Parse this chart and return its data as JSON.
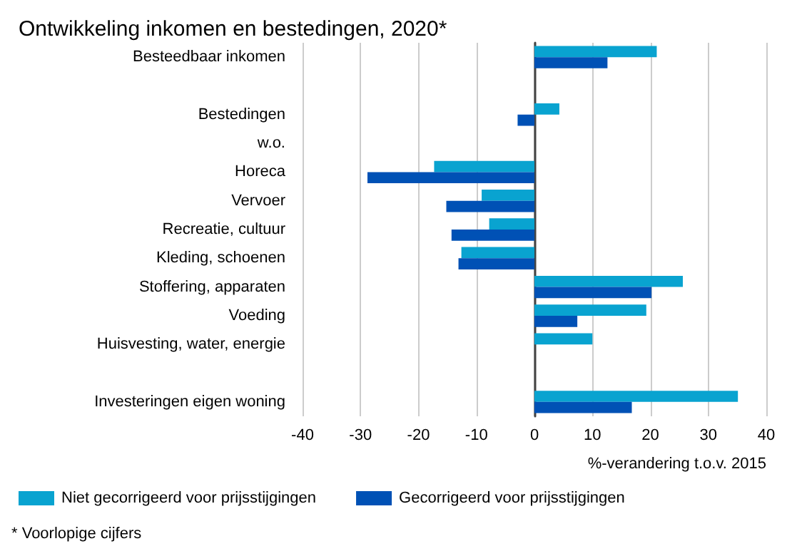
{
  "chart_data": {
    "type": "bar",
    "orientation": "horizontal",
    "title": "Ontwikkeling inkomen en bestedingen, 2020*",
    "xlabel": "%-verandering t.o.v. 2015",
    "categories": [
      "Besteedbaar inkomen",
      null,
      "Bestedingen",
      "w.o.",
      "Horeca",
      "Vervoer",
      "Recreatie, cultuur",
      "Kleding, schoenen",
      "Stoffering, apparaten",
      "Voeding",
      "Huisvesting, water, energie",
      null,
      "Investeringen eigen woning"
    ],
    "series": [
      {
        "name": "Niet gecorrigeerd voor prijsstijgingen",
        "color": "#09a3d0",
        "values": [
          21.1,
          null,
          4.3,
          null,
          -17.3,
          -9.1,
          -7.8,
          -12.6,
          25.6,
          19.3,
          10.0,
          null,
          35.1
        ]
      },
      {
        "name": "Gecorrigeerd voor prijsstijgingen",
        "color": "#0051b5",
        "values": [
          12.6,
          null,
          -2.9,
          null,
          -28.8,
          -15.2,
          -14.3,
          -13.1,
          20.2,
          7.4,
          null,
          null,
          16.8
        ]
      }
    ],
    "xlim": [
      -40,
      40
    ],
    "xticks": [
      -40,
      -30,
      -20,
      -10,
      0,
      10,
      20,
      30,
      40
    ],
    "grid": "x",
    "legend": "bottom left",
    "annotations": [
      "* Voorlopige cijfers"
    ]
  }
}
